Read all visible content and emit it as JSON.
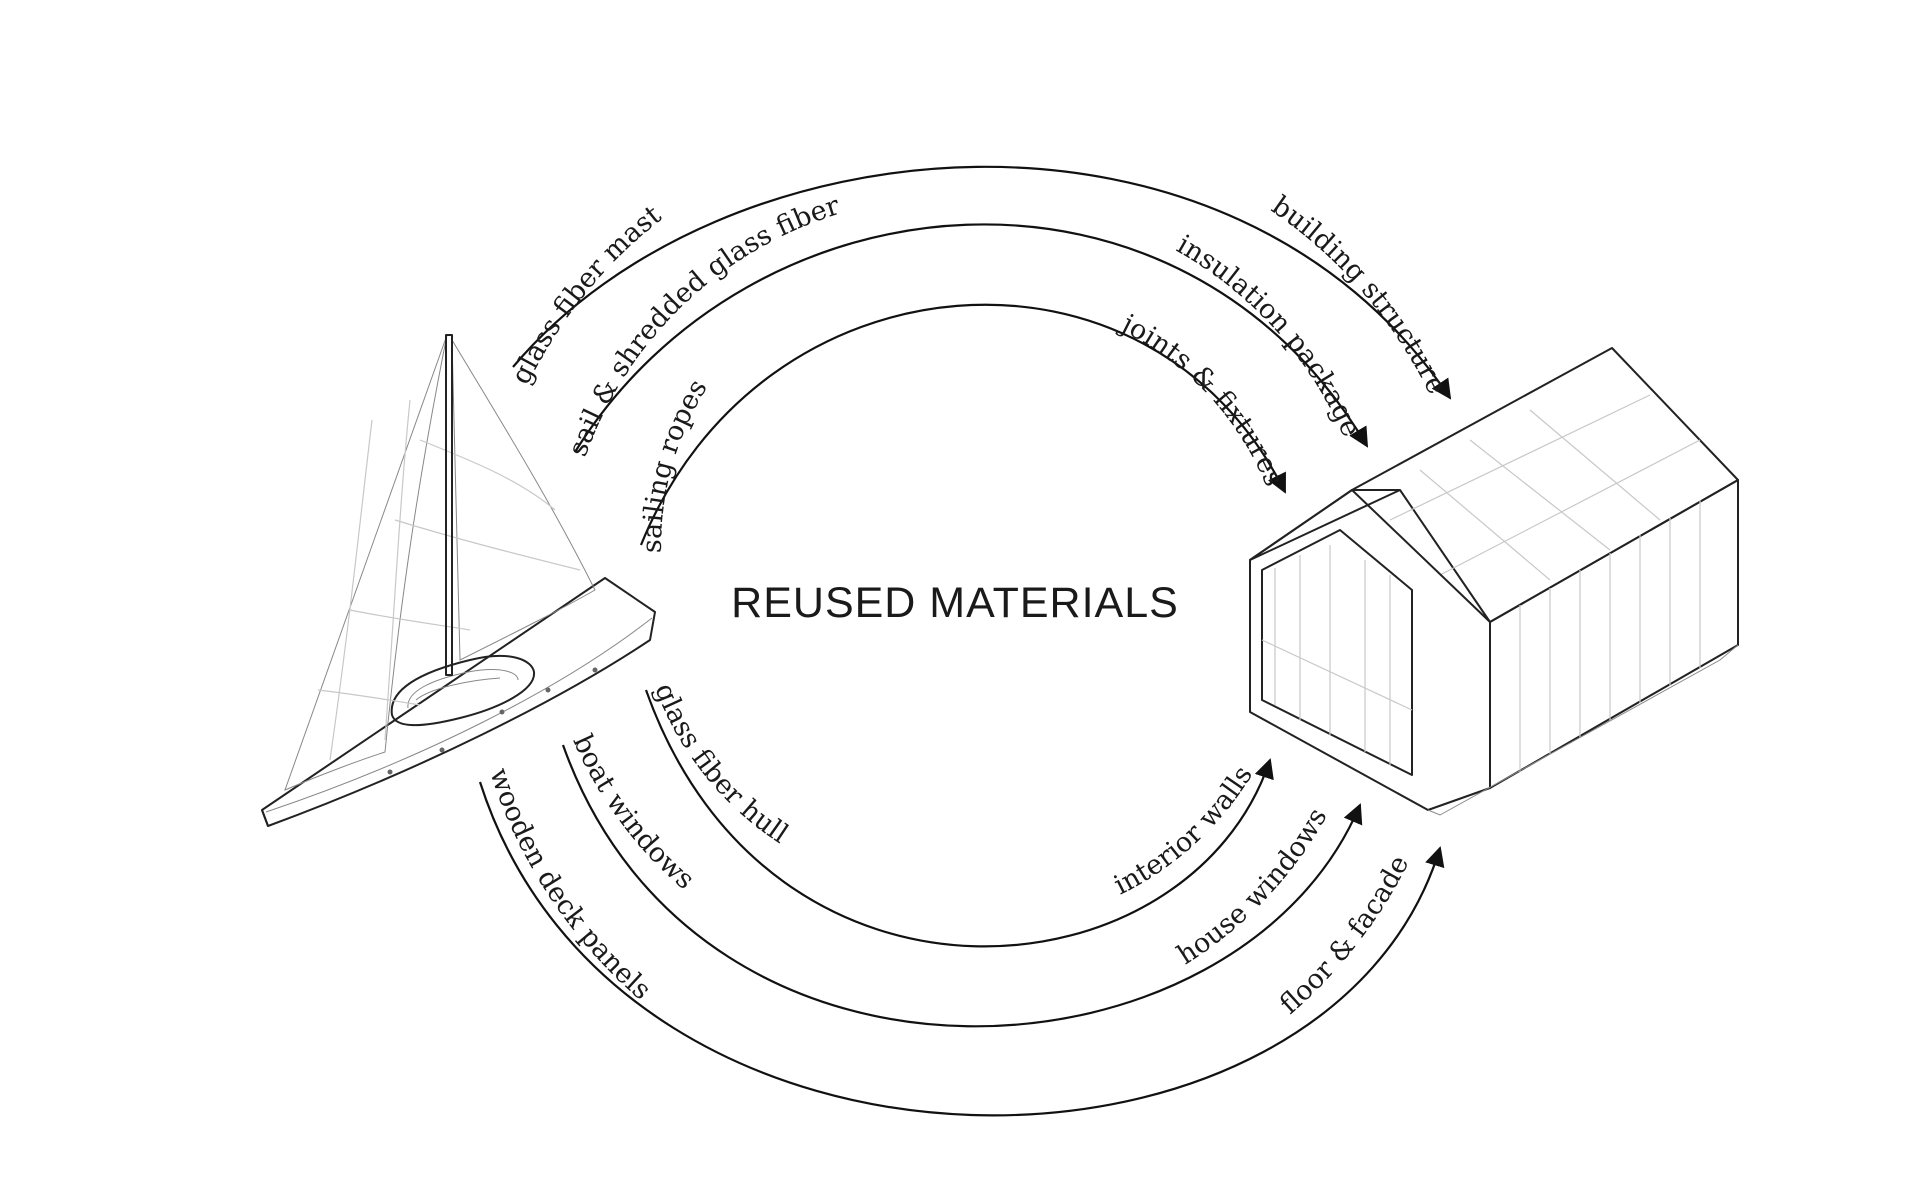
{
  "title": "REUSED MATERIALS",
  "boat_to_house_top": [
    {
      "from": "glass fiber mast",
      "to": "building structure"
    },
    {
      "from": "sail & shredded glass fiber",
      "to": "insulation packages"
    },
    {
      "from": "sailing ropes",
      "to": "joints & fixtures"
    }
  ],
  "boat_to_house_bottom": [
    {
      "from": "glass fiber hull",
      "to": "interior walls"
    },
    {
      "from": "boat windows",
      "to": "house windows"
    },
    {
      "from": "wooden deck panels",
      "to": "floor & facade"
    }
  ]
}
